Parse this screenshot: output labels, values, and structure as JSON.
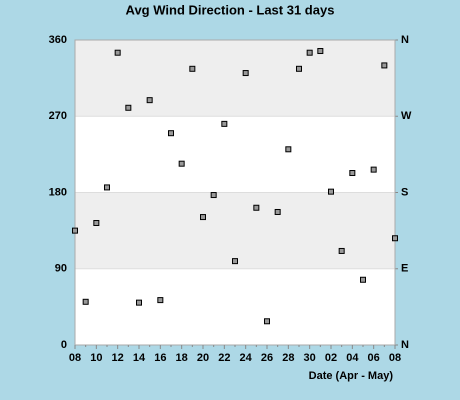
{
  "chart_data": {
    "type": "scatter",
    "title": "Avg Wind Direction - Last 31 days",
    "x_label": "Date (Apr - May)",
    "categories": [
      "08",
      null,
      "10",
      null,
      "12",
      null,
      "14",
      null,
      "16",
      null,
      "18",
      null,
      "20",
      null,
      "22",
      null,
      "24",
      null,
      "26",
      null,
      "28",
      null,
      "30",
      null,
      "02",
      null,
      "04",
      null,
      "06",
      null,
      "08"
    ],
    "series": [
      {
        "name": "Avg Wind Direction",
        "color": "#999999",
        "values": [
          135,
          51,
          144,
          186,
          345,
          280,
          50,
          289,
          53,
          250,
          214,
          326,
          151,
          177,
          261,
          99,
          321,
          162,
          28,
          157,
          231,
          326,
          345,
          347,
          181,
          111,
          203,
          77,
          207,
          330,
          126
        ]
      }
    ],
    "ylim": [
      0,
      360
    ],
    "yticks": [
      0,
      90,
      180,
      270,
      360
    ],
    "y2lim": [
      0,
      360
    ],
    "y2ticks": [
      {
        "value": 0,
        "label": "N"
      },
      {
        "value": 90,
        "label": "E"
      },
      {
        "value": 180,
        "label": "S"
      },
      {
        "value": 270,
        "label": "W"
      },
      {
        "value": 360,
        "label": "N"
      }
    ],
    "bands": [
      {
        "from": 90,
        "to": 180,
        "color": "#eeeeee"
      },
      {
        "from": 270,
        "to": 360,
        "color": "#eeeeee"
      }
    ],
    "plot_background": "#ffffff"
  }
}
